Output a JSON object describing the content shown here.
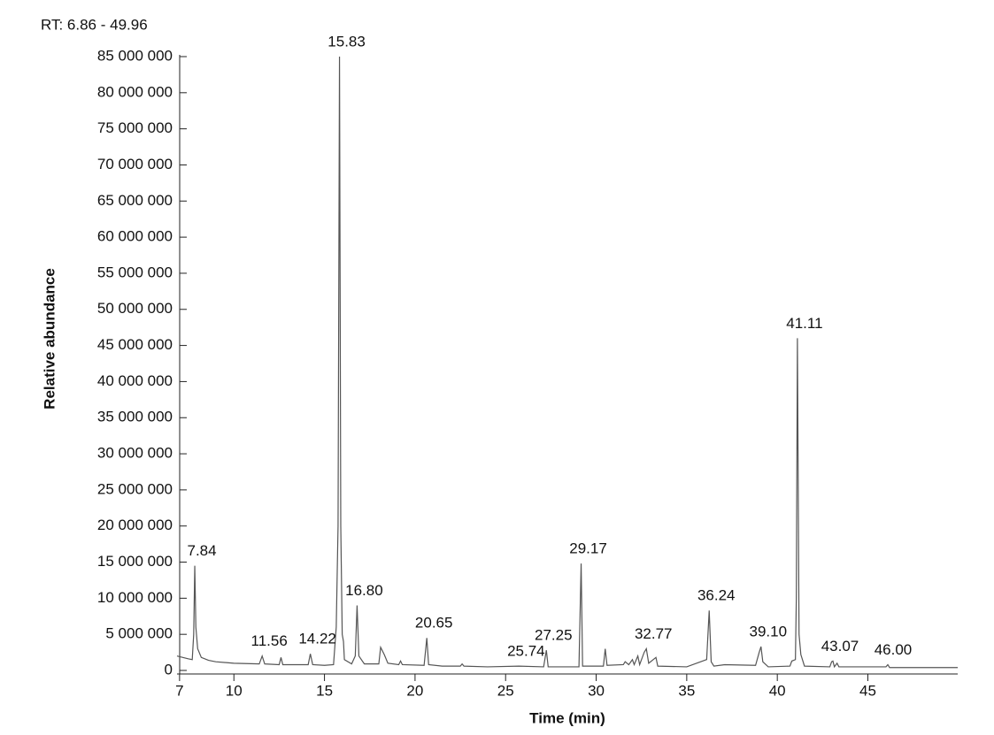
{
  "chart_data": {
    "type": "line",
    "title": "RT: 6.86 - 49.96",
    "xlabel": "Time (min)",
    "ylabel": "Relative abundance",
    "color": "#555555",
    "xlim": [
      6.86,
      49.96
    ],
    "xticks": [
      7,
      10,
      15,
      20,
      25,
      30,
      35,
      40,
      45
    ],
    "ylim": [
      0,
      85000000
    ],
    "yticks": [
      {
        "value": 0,
        "label": "0"
      },
      {
        "value": 5000000,
        "label": "5 000 000"
      },
      {
        "value": 10000000,
        "label": "10 000 000"
      },
      {
        "value": 15000000,
        "label": "15 000 000"
      },
      {
        "value": 20000000,
        "label": "20 000 000"
      },
      {
        "value": 25000000,
        "label": "25 000 000"
      },
      {
        "value": 30000000,
        "label": "30 000 000"
      },
      {
        "value": 35000000,
        "label": "35 000 000"
      },
      {
        "value": 40000000,
        "label": "40 000 000"
      },
      {
        "value": 45000000,
        "label": "45 000 000"
      },
      {
        "value": 50000000,
        "label": "50 000 000"
      },
      {
        "value": 55000000,
        "label": "55 000 000"
      },
      {
        "value": 60000000,
        "label": "60 000 000"
      },
      {
        "value": 65000000,
        "label": "65 000 000"
      },
      {
        "value": 70000000,
        "label": "70 000 000"
      },
      {
        "value": 75000000,
        "label": "75 000 000"
      },
      {
        "value": 80000000,
        "label": "80 000 000"
      },
      {
        "value": 85000000,
        "label": "85 000 000"
      }
    ],
    "x": [
      6.86,
      7.5,
      7.7,
      7.78,
      7.84,
      7.9,
      8.0,
      8.2,
      8.6,
      9.0,
      10,
      11.4,
      11.56,
      11.7,
      12.5,
      12.6,
      12.7,
      13.2,
      14.1,
      14.22,
      14.35,
      15.0,
      15.5,
      15.65,
      15.75,
      15.83,
      15.9,
      15.98,
      16.05,
      16.1,
      16.5,
      16.7,
      16.8,
      16.9,
      17.2,
      18.0,
      18.1,
      18.3,
      18.5,
      19.1,
      19.2,
      19.3,
      20.5,
      20.65,
      20.75,
      21.5,
      22.5,
      22.6,
      22.7,
      24,
      25.74,
      27.1,
      27.25,
      27.35,
      29.05,
      29.17,
      29.25,
      30.4,
      30.5,
      30.6,
      31.5,
      31.6,
      31.8,
      32.0,
      32.1,
      32.3,
      32.4,
      32.65,
      32.77,
      32.9,
      33.3,
      33.4,
      35.0,
      36.1,
      36.24,
      36.35,
      36.5,
      37.1,
      38.8,
      39.0,
      39.1,
      39.2,
      39.5,
      40.7,
      40.8,
      41.0,
      41.05,
      41.11,
      41.2,
      41.3,
      41.5,
      42.9,
      43.0,
      43.07,
      43.15,
      43.3,
      43.4,
      46.0,
      46.1,
      46.2,
      49.96
    ],
    "values": [
      2000000,
      1600000,
      1500000,
      5000000,
      14500000,
      6000000,
      3000000,
      1800000,
      1400000,
      1200000,
      1000000,
      900000,
      2000000,
      900000,
      800000,
      1800000,
      800000,
      800000,
      800000,
      2300000,
      800000,
      700000,
      800000,
      6000000,
      20000000,
      85000000,
      20000000,
      5000000,
      4000000,
      1500000,
      900000,
      2000000,
      9000000,
      2000000,
      900000,
      900000,
      3200000,
      2200000,
      1000000,
      800000,
      1300000,
      800000,
      700000,
      4500000,
      800000,
      600000,
      600000,
      900000,
      600000,
      500000,
      600000,
      500000,
      2800000,
      500000,
      500000,
      14800000,
      600000,
      600000,
      3000000,
      700000,
      800000,
      1200000,
      800000,
      1500000,
      800000,
      2000000,
      800000,
      2500000,
      3000000,
      1000000,
      1800000,
      600000,
      500000,
      1500000,
      8300000,
      1200000,
      600000,
      800000,
      700000,
      2500000,
      3300000,
      1200000,
      500000,
      600000,
      1300000,
      1500000,
      10000000,
      46000000,
      5000000,
      2200000,
      600000,
      500000,
      1200000,
      1300000,
      500000,
      1000000,
      500000,
      500000,
      800000,
      400000,
      400000
    ],
    "annotations": [
      {
        "text": "7.84",
        "x": 7.84,
        "y": 14500000
      },
      {
        "text": "11.56",
        "x": 11.56,
        "y": 2000000
      },
      {
        "text": "14.22",
        "x": 14.22,
        "y": 2300000
      },
      {
        "text": "15.83",
        "x": 15.83,
        "y": 85000000
      },
      {
        "text": "16.80",
        "x": 16.8,
        "y": 9000000
      },
      {
        "text": "20.65",
        "x": 20.65,
        "y": 4500000
      },
      {
        "text": "25.74",
        "x": 25.74,
        "y": 600000
      },
      {
        "text": "27.25",
        "x": 27.25,
        "y": 2800000
      },
      {
        "text": "29.17",
        "x": 29.17,
        "y": 14800000
      },
      {
        "text": "32.77",
        "x": 32.77,
        "y": 3000000
      },
      {
        "text": "36.24",
        "x": 36.24,
        "y": 8300000
      },
      {
        "text": "39.10",
        "x": 39.1,
        "y": 3300000
      },
      {
        "text": "41.11",
        "x": 41.11,
        "y": 46000000
      },
      {
        "text": "43.07",
        "x": 43.07,
        "y": 1300000
      },
      {
        "text": "46.00",
        "x": 46.0,
        "y": 800000
      }
    ]
  }
}
